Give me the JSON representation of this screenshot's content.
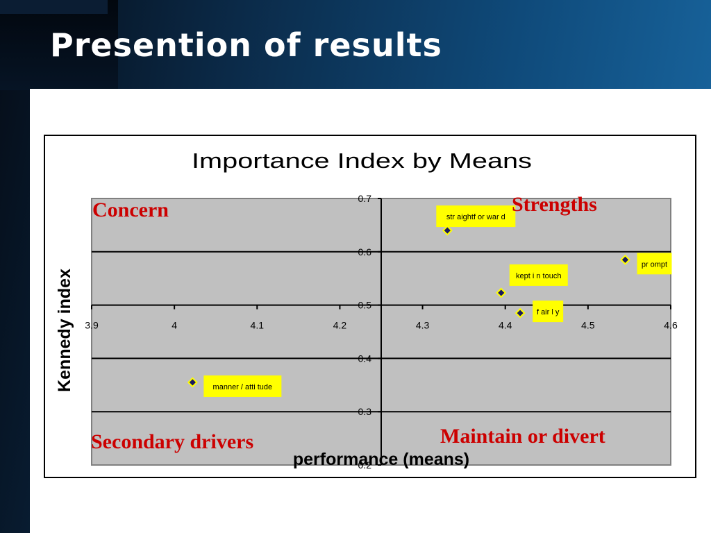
{
  "slide": {
    "title": "Presention of results"
  },
  "chart_data": {
    "type": "scatter",
    "title": "Importance Index by Means",
    "xlabel": "performance (means)",
    "ylabel": "Kennedy index",
    "xlim": [
      3.9,
      4.6
    ],
    "ylim": [
      0.2,
      0.7
    ],
    "x_ticks": [
      "3.9",
      "4",
      "4.1",
      "4.2",
      "4.3",
      "4.4",
      "4.5",
      "4.6"
    ],
    "y_ticks": [
      "0.2",
      "0.3",
      "0.4",
      "0.5",
      "0.6",
      "0.7"
    ],
    "x_axis_crosses_y": 0.5,
    "y_axis_crosses_x": 4.25,
    "grid": true,
    "marker_color": "#1a1a5e",
    "label_bg": "#ffff00",
    "points": [
      {
        "label": "str aightf or war d",
        "x": 4.33,
        "y": 0.64
      },
      {
        "label": "pr ompt",
        "x": 4.545,
        "y": 0.585
      },
      {
        "label": "kept i n touch",
        "x": 4.395,
        "y": 0.523
      },
      {
        "label": "f air l y",
        "x": 4.418,
        "y": 0.485
      },
      {
        "label": "manner / atti tude",
        "x": 4.022,
        "y": 0.355
      }
    ],
    "quadrant_labels": {
      "top_left": "Concern",
      "top_right": "Strengths",
      "bottom_left": "Secondary drivers",
      "bottom_right": "Maintain or divert"
    },
    "quadrant_label_color": "#cc0000"
  }
}
